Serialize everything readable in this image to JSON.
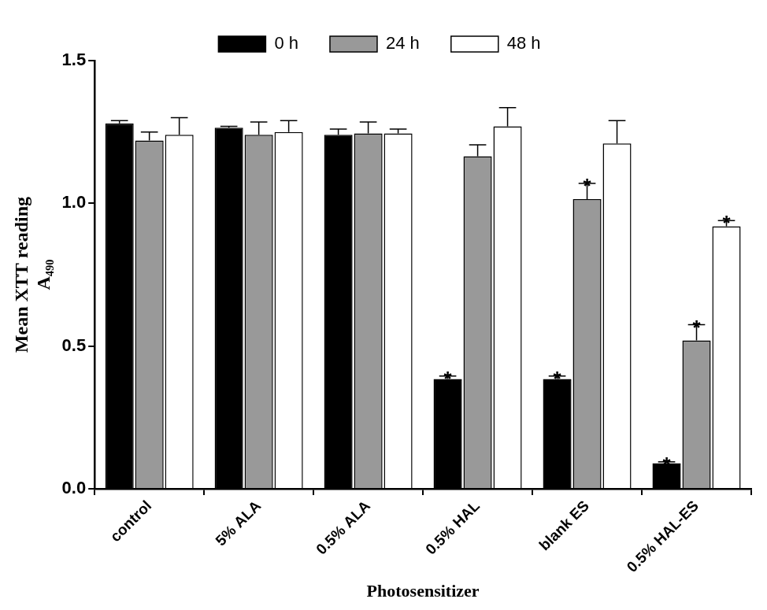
{
  "chart_data": {
    "type": "bar",
    "x_label": "Photosensitizer",
    "y_label": [
      "Mean XTT reading",
      "A₄₉₀"
    ],
    "categories": [
      "control",
      "5% ALA",
      "0.5% ALA",
      "0.5% HAL",
      "blank ES",
      "0.5% HAL-ES"
    ],
    "series": [
      {
        "name": "0 h",
        "color": "#000000",
        "values": [
          1.28,
          1.265,
          1.24,
          0.385,
          0.385,
          0.09
        ],
        "errors": [
          0.01,
          0.005,
          0.02,
          0.01,
          0.01,
          0.005
        ]
      },
      {
        "name": "24 h",
        "color": "#999999",
        "values": [
          1.22,
          1.24,
          1.245,
          1.165,
          1.015,
          0.52
        ],
        "errors": [
          0.03,
          0.045,
          0.04,
          0.04,
          0.055,
          0.055
        ]
      },
      {
        "name": "48 h",
        "color": "#ffffff",
        "values": [
          1.24,
          1.25,
          1.245,
          1.27,
          1.21,
          0.92
        ],
        "errors": [
          0.06,
          0.04,
          0.015,
          0.065,
          0.08,
          0.02
        ]
      }
    ],
    "annotations": [
      {
        "text": "*",
        "series": "0 h",
        "category": "0.5% HAL"
      },
      {
        "text": "*",
        "series": "0 h",
        "category": "blank ES"
      },
      {
        "text": "*",
        "series": "24 h",
        "category": "blank ES"
      },
      {
        "text": "*",
        "series": "0 h",
        "category": "0.5% HAL-ES"
      },
      {
        "text": "*",
        "series": "24 h",
        "category": "0.5% HAL-ES"
      },
      {
        "text": "*",
        "series": "48 h",
        "category": "0.5% HAL-ES"
      }
    ],
    "ylim": [
      0,
      1.5
    ],
    "yticks": [
      {
        "value": 0,
        "label": "0.0"
      },
      {
        "value": 0.5,
        "label": "0.5"
      },
      {
        "value": 1,
        "label": "1.0"
      },
      {
        "value": 1.5,
        "label": "1.5"
      }
    ],
    "grid": false,
    "legend": "top"
  }
}
